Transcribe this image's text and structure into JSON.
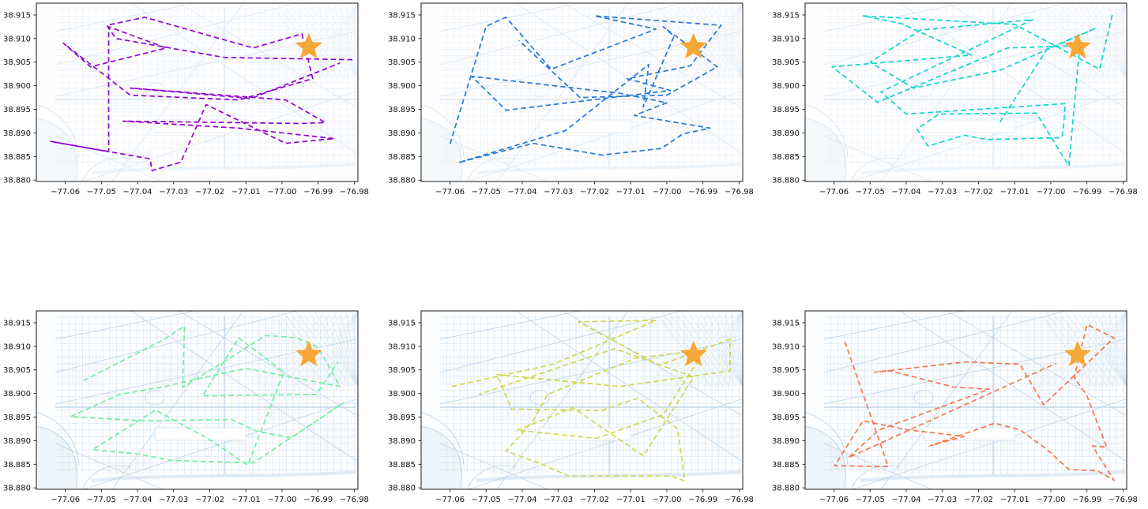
{
  "figure": {
    "background": "#ffffff",
    "description": "2x3 grid of dashed route trajectories over a light-blue street map of Washington DC, orange star marks the common destination in each panel"
  },
  "axes_template": {
    "xlim": [
      -77.068,
      -76.979
    ],
    "ylim": [
      38.8797,
      38.9175
    ],
    "xticks": [
      -77.06,
      -77.05,
      -77.04,
      -77.03,
      -77.02,
      -77.01,
      -77.0,
      -76.99,
      -76.98
    ],
    "xtick_labels": [
      "−77.06",
      "−77.05",
      "−77.04",
      "−77.03",
      "−77.02",
      "−77.01",
      "−77.00",
      "−76.99",
      "−76.98"
    ],
    "yticks": [
      38.88,
      38.885,
      38.89,
      38.895,
      38.9,
      38.905,
      38.91,
      38.915
    ],
    "ytick_labels": [
      "38.880",
      "38.885",
      "38.890",
      "38.895",
      "38.900",
      "38.905",
      "38.910",
      "38.915"
    ],
    "spine_color": "#1a1a1a",
    "tick_color": "#1a1a1a",
    "label_color": "#111111",
    "tick_font_px": 10
  },
  "star": {
    "lon": -76.9926,
    "lat": 38.9082,
    "color": "#f7a737"
  },
  "map_style": {
    "street": "#c3d7ea",
    "fine": "#d3e2f1",
    "avenue": "#aac7e2",
    "water_fill": "#d8e7f4",
    "shore": "#b5cfe8",
    "row_opacity": [
      0.45,
      0.8
    ]
  },
  "chart_data": {
    "type": "line",
    "line_style": "dashed",
    "marker": "star",
    "grid": "off",
    "subplots": [
      {
        "row": 0,
        "col": 0,
        "name": "routes-purple",
        "color": "#9400d3",
        "path": [
          [
            -76.9805,
            38.9055
          ],
          [
            -77.016,
            38.906
          ],
          [
            -77.046,
            38.91
          ],
          [
            -77.0485,
            38.9128
          ],
          [
            -77.038,
            38.9145
          ],
          [
            -77.008,
            38.908
          ],
          [
            -76.9945,
            38.911
          ],
          [
            -76.9915,
            38.9015
          ],
          [
            -77.012,
            38.897
          ],
          [
            -77.042,
            38.898
          ],
          [
            -77.0605,
            38.909
          ],
          [
            -77.053,
            38.904
          ],
          [
            -77.032,
            38.908
          ],
          [
            -77.048,
            38.9125
          ],
          [
            -77.048,
            38.886
          ],
          [
            -77.064,
            38.8882
          ],
          [
            -77.0365,
            38.8845
          ],
          [
            -77.036,
            38.882
          ],
          [
            -77.028,
            38.8838
          ],
          [
            -77.021,
            38.896
          ],
          [
            -76.999,
            38.8878
          ],
          [
            -76.9855,
            38.8888
          ],
          [
            -77.012,
            38.891
          ],
          [
            -77.044,
            38.8925
          ],
          [
            -76.995,
            38.892
          ],
          [
            -76.988,
            38.8922
          ],
          [
            -76.999,
            38.897
          ],
          [
            -77.042,
            38.8995
          ],
          [
            -77.0085,
            38.8973
          ],
          [
            -76.984,
            38.9048
          ]
        ]
      },
      {
        "row": 0,
        "col": 1,
        "name": "routes-blue",
        "color": "#2577d9",
        "path": [
          [
            -77.06,
            38.8877
          ],
          [
            -77.05,
            38.9126
          ],
          [
            -77.0445,
            38.9145
          ],
          [
            -77.032,
            38.9035
          ],
          [
            -77.003,
            38.912
          ],
          [
            -77.02,
            38.9148
          ],
          [
            -76.985,
            38.9128
          ],
          [
            -76.9935,
            38.9042
          ],
          [
            -77.011,
            38.9015
          ],
          [
            -76.999,
            38.899
          ],
          [
            -77.0445,
            38.8948
          ],
          [
            -77.054,
            38.902
          ],
          [
            -77.013,
            38.8984
          ],
          [
            -77.0,
            38.8964
          ],
          [
            -77.009,
            38.8937
          ],
          [
            -76.988,
            38.891
          ],
          [
            -76.9955,
            38.8898
          ],
          [
            -77.0015,
            38.8867
          ],
          [
            -77.018,
            38.8853
          ],
          [
            -77.037,
            38.8878
          ],
          [
            -77.0577,
            38.8837
          ],
          [
            -77.028,
            38.8905
          ],
          [
            -77.005,
            38.9045
          ],
          [
            -77.0065,
            38.8955
          ],
          [
            -76.998,
            38.9105
          ],
          [
            -77.001,
            38.9125
          ],
          [
            -76.986,
            38.904
          ],
          [
            -77.0,
            38.898
          ],
          [
            -77.024,
            38.8975
          ],
          [
            -77.041,
            38.9096
          ]
        ]
      },
      {
        "row": 0,
        "col": 2,
        "name": "routes-cyan",
        "color": "#0fd5cd",
        "path": [
          [
            -76.983,
            38.915
          ],
          [
            -76.9865,
            38.9035
          ],
          [
            -77.01,
            38.913
          ],
          [
            -77.052,
            38.9148
          ],
          [
            -77.0415,
            38.9132
          ],
          [
            -77.022,
            38.9065
          ],
          [
            -77.0605,
            38.904
          ],
          [
            -77.048,
            38.8965
          ],
          [
            -77.012,
            38.908
          ],
          [
            -76.992,
            38.9085
          ],
          [
            -76.995,
            38.883
          ],
          [
            -77.004,
            38.8942
          ],
          [
            -77.031,
            38.894
          ],
          [
            -77.037,
            38.8908
          ],
          [
            -77.034,
            38.8872
          ],
          [
            -77.024,
            38.8895
          ],
          [
            -77.0175,
            38.8886
          ],
          [
            -76.997,
            38.889
          ],
          [
            -76.9965,
            38.891
          ],
          [
            -76.996,
            38.8962
          ],
          [
            -77.04,
            38.894
          ],
          [
            -77.047,
            38.8987
          ],
          [
            -77.005,
            38.914
          ],
          [
            -77.036,
            38.9118
          ],
          [
            -77.05,
            38.905
          ],
          [
            -77.038,
            38.8995
          ],
          [
            -77.014,
            38.9033
          ],
          [
            -76.9875,
            38.9122
          ],
          [
            -77.001,
            38.9078
          ],
          [
            -77.0145,
            38.8918
          ]
        ]
      },
      {
        "row": 1,
        "col": 0,
        "name": "routes-green",
        "color": "#70efa0",
        "path": [
          [
            -77.055,
            38.9027
          ],
          [
            -77.0325,
            38.9115
          ],
          [
            -77.027,
            38.9143
          ],
          [
            -77.0275,
            38.9013
          ],
          [
            -77.0045,
            38.9123
          ],
          [
            -76.996,
            38.9118
          ],
          [
            -76.99,
            38.9098
          ],
          [
            -76.984,
            38.9015
          ],
          [
            -77.01,
            38.9053
          ],
          [
            -77.018,
            38.904
          ],
          [
            -77.033,
            38.9014
          ],
          [
            -77.045,
            38.8998
          ],
          [
            -77.0585,
            38.8951
          ],
          [
            -77.038,
            38.8942
          ],
          [
            -77.014,
            38.8945
          ],
          [
            -77.007,
            38.892
          ],
          [
            -76.9975,
            38.8906
          ],
          [
            -76.983,
            38.898
          ],
          [
            -77.008,
            38.8853
          ],
          [
            -77.0305,
            38.8858
          ],
          [
            -77.04,
            38.8872
          ],
          [
            -77.0525,
            38.8881
          ],
          [
            -77.035,
            38.8965
          ],
          [
            -77.02,
            38.8902
          ],
          [
            -77.0095,
            38.8848
          ],
          [
            -76.9995,
            38.9045
          ],
          [
            -77.012,
            38.9118
          ],
          [
            -77.022,
            38.8995
          ],
          [
            -76.9905,
            38.8998
          ],
          [
            -76.9845,
            38.9067
          ]
        ]
      },
      {
        "row": 1,
        "col": 1,
        "name": "routes-yellow",
        "color": "#d2d64b",
        "path": [
          [
            -77.0595,
            38.9015
          ],
          [
            -77.0315,
            38.9062
          ],
          [
            -77.003,
            38.9155
          ],
          [
            -77.0245,
            38.9152
          ],
          [
            -77.002,
            38.906
          ],
          [
            -76.9825,
            38.9115
          ],
          [
            -76.9825,
            38.9048
          ],
          [
            -77.013,
            38.9015
          ],
          [
            -77.047,
            38.904
          ],
          [
            -77.043,
            38.8967
          ],
          [
            -77.018,
            38.8964
          ],
          [
            -77.008,
            38.899
          ],
          [
            -76.997,
            38.8925
          ],
          [
            -76.995,
            38.8815
          ],
          [
            -76.999,
            38.8825
          ],
          [
            -77.027,
            38.8825
          ],
          [
            -77.0355,
            38.8853
          ],
          [
            -77.0445,
            38.8878
          ],
          [
            -77.037,
            38.8942
          ],
          [
            -77.033,
            38.8998
          ],
          [
            -77.0085,
            38.9075
          ],
          [
            -76.9895,
            38.9092
          ],
          [
            -77.001,
            38.8955
          ],
          [
            -77.0195,
            38.8905
          ],
          [
            -77.0415,
            38.8922
          ],
          [
            -77.026,
            38.897
          ],
          [
            -77.0065,
            38.8868
          ],
          [
            -76.9925,
            38.9035
          ],
          [
            -77.0145,
            38.9095
          ],
          [
            -77.052,
            38.8998
          ]
        ]
      },
      {
        "row": 1,
        "col": 2,
        "name": "routes-orange",
        "color": "#f5764a",
        "path": [
          [
            -77.057,
            38.911
          ],
          [
            -77.045,
            38.8845
          ],
          [
            -77.0598,
            38.8847
          ],
          [
            -77.052,
            38.8942
          ],
          [
            -77.0395,
            38.8923
          ],
          [
            -77.024,
            38.8909
          ],
          [
            -77.0335,
            38.8889
          ],
          [
            -77.0155,
            38.8937
          ],
          [
            -77.0085,
            38.8923
          ],
          [
            -77.001,
            38.8881
          ],
          [
            -76.995,
            38.8839
          ],
          [
            -76.987,
            38.8836
          ],
          [
            -76.9825,
            38.8816
          ],
          [
            -76.9885,
            38.8889
          ],
          [
            -76.9845,
            38.8886
          ],
          [
            -76.99,
            38.8995
          ],
          [
            -76.9935,
            38.9034
          ],
          [
            -76.99,
            38.9146
          ],
          [
            -76.9825,
            38.9118
          ],
          [
            -77.002,
            38.8976
          ],
          [
            -77.0085,
            38.9062
          ],
          [
            -77.0235,
            38.9067
          ],
          [
            -77.0488,
            38.9045
          ],
          [
            -77.0445,
            38.9048
          ],
          [
            -77.027,
            38.9014
          ],
          [
            -77.017,
            38.9009
          ],
          [
            -77.033,
            38.8964
          ],
          [
            -77.0475,
            38.8923
          ],
          [
            -77.056,
            38.8864
          ],
          [
            -76.9985,
            38.9064
          ]
        ]
      }
    ]
  }
}
